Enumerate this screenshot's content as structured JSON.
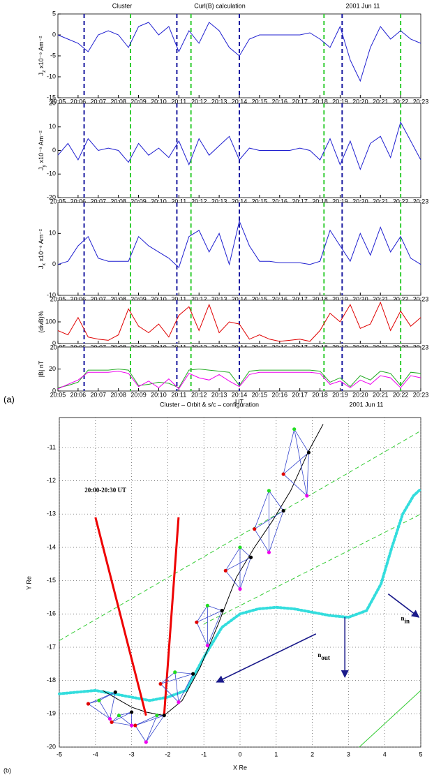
{
  "chart_data": [
    {
      "type": "multi-panel-line",
      "titles": [
        "Cluster",
        "Curl(B) calculation",
        "2001  Jun  11"
      ],
      "xlabel": "UT",
      "panel_label": "(a)",
      "x": [
        5,
        5.5,
        6,
        6.5,
        7,
        7.5,
        8,
        8.5,
        9,
        9.5,
        10,
        10.5,
        11,
        11.5,
        12,
        12.5,
        13,
        13.5,
        14,
        14.5,
        15,
        15.5,
        16,
        16.5,
        17,
        17.5,
        18,
        18.5,
        19,
        19.5,
        20,
        20.5,
        21,
        21.5,
        22,
        22.5,
        23
      ],
      "xlim": [
        5,
        23
      ],
      "xticks": [
        {
          "value": 5,
          "label": "20:05"
        },
        {
          "value": 6,
          "label": "20:06"
        },
        {
          "value": 7,
          "label": "20:07"
        },
        {
          "value": 8,
          "label": "20:08"
        },
        {
          "value": 9,
          "label": "20:09"
        },
        {
          "value": 10,
          "label": "20:10"
        },
        {
          "value": 11,
          "label": "20:11"
        },
        {
          "value": 12,
          "label": "20:12"
        },
        {
          "value": 13,
          "label": "20:13"
        },
        {
          "value": 14,
          "label": "20:14"
        },
        {
          "value": 15,
          "label": "20:15"
        },
        {
          "value": 16,
          "label": "20:16"
        },
        {
          "value": 17,
          "label": "20:17"
        },
        {
          "value": 18,
          "label": "20:18"
        },
        {
          "value": 19,
          "label": "20:19"
        },
        {
          "value": 20,
          "label": "20:20"
        },
        {
          "value": 21,
          "label": "20:21"
        },
        {
          "value": 22,
          "label": "20:22"
        },
        {
          "value": 23,
          "label": "20:23"
        }
      ],
      "vlines": [
        {
          "x": 6.3,
          "color": "#1a1aa0"
        },
        {
          "x": 8.6,
          "color": "#33cc33"
        },
        {
          "x": 10.9,
          "color": "#1a1aa0"
        },
        {
          "x": 11.6,
          "color": "#33cc33"
        },
        {
          "x": 14.0,
          "color": "#1a1aa0"
        },
        {
          "x": 18.2,
          "color": "#33cc33"
        },
        {
          "x": 19.1,
          "color": "#1a1aa0"
        },
        {
          "x": 22.0,
          "color": "#33cc33"
        }
      ],
      "panels": [
        {
          "ylabel": {
            "text": "J",
            "sub": "z",
            "unit": " x10⁻⁹ Am⁻²"
          },
          "ylim": [
            -15,
            5
          ],
          "yticks": [
            -15,
            -10,
            -5,
            0,
            5
          ],
          "series": [
            {
              "color": "#1f1fd0",
              "values": [
                0,
                -1,
                -2,
                -4,
                0,
                1,
                0,
                -3,
                2,
                3,
                0,
                2,
                -4,
                1,
                -2,
                3,
                1,
                -3,
                -5,
                -1,
                0,
                0,
                0,
                0,
                0,
                0.5,
                -1,
                -3,
                2,
                -6,
                -11,
                -3,
                2,
                -1,
                1,
                -1,
                -2
              ]
            }
          ]
        },
        {
          "ylabel": {
            "text": "J",
            "sub": "y",
            "unit": " x10⁻⁹ Am⁻²"
          },
          "ylim": [
            -20,
            20
          ],
          "yticks": [
            -20,
            -10,
            0,
            10,
            20
          ],
          "series": [
            {
              "color": "#1f1fd0",
              "values": [
                -2,
                3,
                -4,
                5,
                0,
                1,
                0,
                -5,
                3,
                -2,
                1,
                -3,
                4,
                -6,
                5,
                -2,
                2,
                6,
                -4,
                1,
                0,
                0,
                0,
                0,
                1,
                0,
                -4,
                5,
                -6,
                4,
                -8,
                3,
                6,
                -3,
                12,
                4,
                -4
              ]
            }
          ]
        },
        {
          "ylabel": {
            "text": "J",
            "sub": "x",
            "unit": " x10⁻⁹ Am⁻²"
          },
          "ylim": [
            -10,
            20
          ],
          "yticks": [
            -10,
            0,
            10
          ],
          "series": [
            {
              "color": "#1f1fd0",
              "values": [
                0,
                1,
                6,
                9,
                2,
                1,
                1,
                1,
                9,
                6,
                4,
                2,
                -1,
                9,
                11,
                4,
                10,
                0,
                14,
                6,
                1,
                1,
                0.5,
                0.5,
                0.5,
                0,
                1,
                11,
                6,
                1,
                10,
                3,
                12,
                4,
                9,
                2,
                0
              ]
            }
          ]
        },
        {
          "ylabel": {
            "text": "(divB)%"
          },
          "ylim": [
            0,
            200
          ],
          "yticks": [
            0,
            100
          ],
          "series": [
            {
              "color": "#e00000",
              "values": [
                60,
                40,
                120,
                30,
                20,
                15,
                40,
                160,
                80,
                50,
                90,
                30,
                130,
                170,
                60,
                180,
                50,
                100,
                90,
                20,
                40,
                20,
                10,
                15,
                20,
                10,
                60,
                140,
                100,
                180,
                70,
                90,
                190,
                60,
                150,
                80,
                120
              ]
            }
          ]
        },
        {
          "ylabel": {
            "text": "|B| nT"
          },
          "ylim": [
            0,
            40
          ],
          "yticks": [
            0,
            20
          ],
          "series": [
            {
              "color": "#22aa22",
              "values": [
                3,
                5,
                8,
                19,
                19,
                19,
                20,
                19,
                5,
                6,
                8,
                7,
                3,
                19,
                20,
                19,
                18,
                17,
                5,
                18,
                19,
                19,
                19,
                19,
                19,
                19,
                18,
                8,
                12,
                4,
                14,
                10,
                18,
                16,
                5,
                17,
                16
              ]
            },
            {
              "color": "#ee00ee",
              "values": [
                2,
                6,
                10,
                17,
                17,
                17,
                18,
                16,
                4,
                9,
                3,
                11,
                2,
                16,
                12,
                10,
                15,
                9,
                4,
                15,
                17,
                17,
                17,
                17,
                17,
                17,
                16,
                6,
                9,
                3,
                10,
                6,
                14,
                12,
                3,
                14,
                12
              ]
            }
          ]
        }
      ]
    },
    {
      "type": "orbit",
      "titles": [
        "Cluster   – Orbit & s/c – configuration",
        "2001  Jun  11"
      ],
      "panel_label": "(b)",
      "xlabel": "X Re",
      "ylabel": "Y Re",
      "xlim": [
        -5,
        5
      ],
      "ylim": [
        -20,
        -10.1
      ],
      "xticks": [
        -5,
        -4,
        -3,
        -2,
        -1,
        0,
        1,
        2,
        3,
        4,
        5
      ],
      "yticks": [
        -20,
        -19,
        -18,
        -17,
        -16,
        -15,
        -14,
        -13,
        -12,
        -11
      ],
      "grid": true,
      "series": [
        {
          "color": "#33cc33",
          "style": "dashed",
          "x": [
            -5,
            5
          ],
          "y": [
            -16.8,
            -10.5
          ]
        },
        {
          "color": "#33cc33",
          "style": "dashed",
          "x": [
            -1,
            5
          ],
          "y": [
            -16.3,
            -13.0
          ]
        },
        {
          "color": "#33cc33",
          "style": "solid",
          "x": [
            3.3,
            5
          ],
          "y": [
            -20,
            -18.3
          ]
        },
        {
          "color": "#33dddd",
          "style": "dotted",
          "x": [
            -5,
            -4,
            -3,
            -2.5,
            -2,
            -1.5,
            -1,
            -0.5,
            0,
            0.5,
            1,
            1.5,
            2,
            2.5,
            3,
            3.5,
            3.9,
            4.2,
            4.5,
            4.8,
            5
          ],
          "y": [
            -18.4,
            -18.3,
            -18.5,
            -18.6,
            -18.5,
            -18.3,
            -17.3,
            -16.4,
            -16.0,
            -15.85,
            -15.8,
            -15.85,
            -15.95,
            -16.05,
            -16.1,
            -15.9,
            -15.1,
            -14.0,
            -13.0,
            -12.45,
            -12.25
          ]
        },
        {
          "color": "#000000",
          "style": "solid",
          "x": [
            -3.8,
            -3.4,
            -3.0,
            -2.6,
            -2.1,
            -1.6,
            -1.1,
            -0.6,
            -0.1,
            0.4,
            0.9,
            1.4,
            1.9,
            2.3
          ],
          "y": [
            -18.3,
            -18.55,
            -18.8,
            -18.95,
            -19.05,
            -18.6,
            -17.6,
            -16.3,
            -14.9,
            -14.0,
            -13.2,
            -12.3,
            -11.1,
            -10.3
          ]
        },
        {
          "color": "#ee0000",
          "style": "thick",
          "x": [
            -4,
            -2.6
          ],
          "y": [
            -13.1,
            -19.05
          ]
        },
        {
          "color": "#ee0000",
          "style": "thick",
          "x": [
            -1.7,
            -2.1
          ],
          "y": [
            -13.1,
            -19.05
          ]
        }
      ],
      "vertex_colors": [
        "#000000",
        "#e00000",
        "#22dd22",
        "#ee00ee"
      ],
      "tetrahedra": [
        {
          "x": [
            -3.45,
            -4.2,
            -3.9,
            -3.6
          ],
          "y": [
            -18.35,
            -18.7,
            -18.6,
            -19.15
          ]
        },
        {
          "x": [
            -3.0,
            -3.55,
            -3.35,
            -3.0
          ],
          "y": [
            -18.95,
            -19.25,
            -19.05,
            -19.35
          ]
        },
        {
          "x": [
            -2.1,
            -2.9,
            -2.3,
            -2.6
          ],
          "y": [
            -19.05,
            -19.35,
            -19.05,
            -19.85
          ]
        },
        {
          "x": [
            -1.3,
            -2.2,
            -1.8,
            -1.7
          ],
          "y": [
            -17.8,
            -18.1,
            -17.75,
            -18.65
          ]
        },
        {
          "x": [
            -0.5,
            -1.2,
            -0.9,
            -0.9
          ],
          "y": [
            -15.9,
            -16.25,
            -15.75,
            -16.95
          ]
        },
        {
          "x": [
            0.3,
            -0.4,
            0.0,
            0.0
          ],
          "y": [
            -14.3,
            -14.7,
            -14.0,
            -15.25
          ]
        },
        {
          "x": [
            1.2,
            0.4,
            0.8,
            0.8
          ],
          "y": [
            -12.9,
            -13.45,
            -12.3,
            -14.15
          ]
        },
        {
          "x": [
            1.9,
            1.2,
            1.5,
            1.85
          ],
          "y": [
            -11.15,
            -11.8,
            -10.45,
            -12.45
          ]
        }
      ],
      "arrows": [
        {
          "x": [
            2.1,
            -0.65
          ],
          "y": [
            -16.6,
            -18.05
          ]
        },
        {
          "x": [
            2.9,
            2.9
          ],
          "y": [
            -16.1,
            -17.9
          ]
        },
        {
          "x": [
            4.1,
            4.95
          ],
          "y": [
            -15.4,
            -16.1
          ]
        }
      ],
      "annotations": [
        {
          "text": "20:00-20:30 UT",
          "x": -4.3,
          "y": -12.3
        },
        {
          "text": "n",
          "sub": "out",
          "x": 2.15,
          "y": -17.25
        },
        {
          "text": "n",
          "sub": "in",
          "x": 4.45,
          "y": -16.15
        }
      ]
    }
  ]
}
